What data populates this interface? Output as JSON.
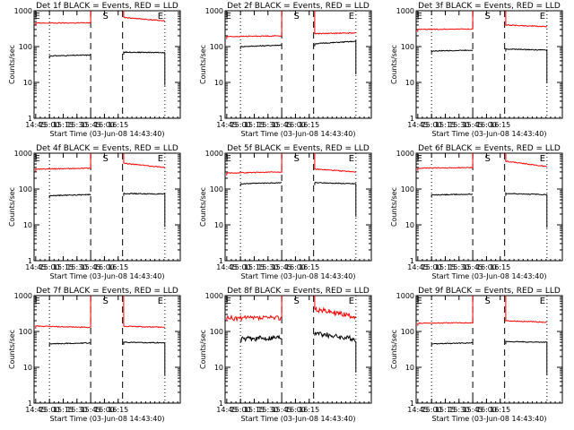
{
  "colors": {
    "events": "#000000",
    "lld": "#ff0000",
    "axes": "#000000"
  },
  "chart_data": [
    {
      "type": "line",
      "title": "Det 1f BLACK = Events, RED = LLD",
      "ylabel": "Counts/sec",
      "xlabel": "Start Time (03-Jun-08 14:43:40)",
      "yscale": "log",
      "ylim": [
        1,
        1000
      ],
      "xticks": [
        "14:45",
        "15:00",
        "15:15",
        "15:30",
        "15:45",
        "16:00",
        "16:15"
      ],
      "yticks": [
        "1",
        "10",
        "100",
        "1000"
      ],
      "markers": [
        "E",
        "S",
        "E"
      ],
      "series": [
        {
          "label": "Events",
          "segments": [
            {
              "x": [
                15.0,
                15.75
              ],
              "y": [
                55,
                58
              ]
            },
            {
              "x": [
                16.35,
                17.1
              ],
              "y": [
                70,
                68
              ]
            }
          ]
        },
        {
          "label": "LLD",
          "segments": [
            {
              "x": [
                14.75,
                15.75
              ],
              "y": [
                450,
                460
              ]
            },
            {
              "x": [
                16.35,
                17.1
              ],
              "y": [
                650,
                520
              ]
            }
          ]
        }
      ]
    },
    {
      "type": "line",
      "title": "Det 2f BLACK = Events, RED = LLD",
      "ylabel": "Counts/sec",
      "xlabel": "Start Time (03-Jun-08 14:43:40)",
      "yscale": "log",
      "ylim": [
        1,
        1000
      ],
      "xticks": [
        "14:45",
        "15:00",
        "15:15",
        "15:30",
        "15:45",
        "16:00",
        "16:15"
      ],
      "yticks": [
        "1",
        "10",
        "100",
        "1000"
      ],
      "markers": [
        "E",
        "S",
        "E"
      ],
      "series": [
        {
          "label": "Events",
          "segments": [
            {
              "x": [
                15.0,
                15.75
              ],
              "y": [
                100,
                110
              ]
            },
            {
              "x": [
                16.35,
                17.1
              ],
              "y": [
                120,
                140
              ]
            }
          ]
        },
        {
          "label": "LLD",
          "segments": [
            {
              "x": [
                14.75,
                15.75
              ],
              "y": [
                190,
                200
              ]
            },
            {
              "x": [
                16.35,
                17.1
              ],
              "y": [
                230,
                240
              ]
            }
          ]
        }
      ]
    },
    {
      "type": "line",
      "title": "Det 3f BLACK = Events, RED = LLD",
      "ylabel": "Counts/sec",
      "xlabel": "Start Time (03-Jun-08 14:43:40)",
      "yscale": "log",
      "ylim": [
        1,
        1000
      ],
      "xticks": [
        "14:45",
        "15:00",
        "15:15",
        "15:30",
        "15:45",
        "16:00",
        "16:15"
      ],
      "yticks": [
        "1",
        "10",
        "100",
        "1000"
      ],
      "markers": [
        "E",
        "S",
        "E"
      ],
      "series": [
        {
          "label": "Events",
          "segments": [
            {
              "x": [
                15.0,
                15.75
              ],
              "y": [
                75,
                80
              ]
            },
            {
              "x": [
                16.35,
                17.1
              ],
              "y": [
                85,
                80
              ]
            }
          ]
        },
        {
          "label": "LLD",
          "segments": [
            {
              "x": [
                14.75,
                15.75
              ],
              "y": [
                300,
                310
              ]
            },
            {
              "x": [
                16.35,
                17.1
              ],
              "y": [
                400,
                360
              ]
            }
          ]
        }
      ]
    },
    {
      "type": "line",
      "title": "Det 4f BLACK = Events, RED = LLD",
      "ylabel": "Counts/sec",
      "xlabel": "Start Time (03-Jun-08 14:43:40)",
      "yscale": "log",
      "ylim": [
        1,
        1000
      ],
      "xticks": [
        "14:45",
        "15:00",
        "15:15",
        "15:30",
        "15:45",
        "16:00",
        "16:15"
      ],
      "yticks": [
        "1",
        "10",
        "100",
        "1000"
      ],
      "markers": [
        "E",
        "S",
        "E"
      ],
      "series": [
        {
          "label": "Events",
          "segments": [
            {
              "x": [
                15.0,
                15.75
              ],
              "y": [
                65,
                70
              ]
            },
            {
              "x": [
                16.35,
                17.1
              ],
              "y": [
                75,
                72
              ]
            }
          ]
        },
        {
          "label": "LLD",
          "segments": [
            {
              "x": [
                14.75,
                15.75
              ],
              "y": [
                360,
                380
              ]
            },
            {
              "x": [
                16.35,
                17.1
              ],
              "y": [
                520,
                400
              ]
            }
          ]
        }
      ]
    },
    {
      "type": "line",
      "title": "Det 5f BLACK = Events, RED = LLD",
      "ylabel": "Counts/sec",
      "xlabel": "Start Time (03-Jun-08 14:43:40)",
      "yscale": "log",
      "ylim": [
        1,
        1000
      ],
      "xticks": [
        "14:45",
        "15:00",
        "15:15",
        "15:30",
        "15:45",
        "16:00",
        "16:15"
      ],
      "yticks": [
        "1",
        "10",
        "100",
        "1000"
      ],
      "markers": [
        "E",
        "S",
        "E"
      ],
      "series": [
        {
          "label": "Events",
          "segments": [
            {
              "x": [
                15.0,
                15.75
              ],
              "y": [
                140,
                150
              ]
            },
            {
              "x": [
                16.35,
                17.1
              ],
              "y": [
                150,
                140
              ]
            }
          ]
        },
        {
          "label": "LLD",
          "segments": [
            {
              "x": [
                14.75,
                15.75
              ],
              "y": [
                280,
                300
              ]
            },
            {
              "x": [
                16.35,
                17.1
              ],
              "y": [
                360,
                300
              ]
            }
          ]
        }
      ]
    },
    {
      "type": "line",
      "title": "Det 6f BLACK = Events, RED = LLD",
      "ylabel": "Counts/sec",
      "xlabel": "Start Time (03-Jun-08 14:43:40)",
      "yscale": "log",
      "ylim": [
        1,
        1000
      ],
      "xticks": [
        "14:45",
        "15:00",
        "15:15",
        "15:30",
        "15:45",
        "16:00",
        "16:15"
      ],
      "yticks": [
        "1",
        "10",
        "100",
        "1000"
      ],
      "markers": [
        "E",
        "S",
        "E"
      ],
      "series": [
        {
          "label": "Events",
          "segments": [
            {
              "x": [
                15.0,
                15.75
              ],
              "y": [
                68,
                72
              ]
            },
            {
              "x": [
                16.35,
                17.1
              ],
              "y": [
                75,
                70
              ]
            }
          ]
        },
        {
          "label": "LLD",
          "segments": [
            {
              "x": [
                14.75,
                15.75
              ],
              "y": [
                380,
                400
              ]
            },
            {
              "x": [
                16.35,
                17.1
              ],
              "y": [
                600,
                420
              ]
            }
          ]
        }
      ]
    },
    {
      "type": "line",
      "title": "Det 7f BLACK = Events, RED = LLD",
      "ylabel": "Counts/sec",
      "xlabel": "Start Time (03-Jun-08 14:43:40)",
      "yscale": "log",
      "ylim": [
        1,
        1000
      ],
      "xticks": [
        "14:45",
        "15:00",
        "15:15",
        "15:30",
        "15:45",
        "16:00",
        "16:15"
      ],
      "yticks": [
        "1",
        "10",
        "100",
        "1000"
      ],
      "markers": [
        "E",
        "S",
        "E"
      ],
      "series": [
        {
          "label": "Events",
          "segments": [
            {
              "x": [
                15.0,
                15.75
              ],
              "y": [
                45,
                48
              ]
            },
            {
              "x": [
                16.35,
                17.1
              ],
              "y": [
                50,
                48
              ]
            }
          ]
        },
        {
          "label": "LLD",
          "segments": [
            {
              "x": [
                14.75,
                15.75
              ],
              "y": [
                140,
                130
              ]
            },
            {
              "x": [
                16.35,
                17.1
              ],
              "y": [
                140,
                130
              ]
            }
          ]
        }
      ]
    },
    {
      "type": "line",
      "title": "Det 8f BLACK = Events, RED = LLD",
      "ylabel": "Counts/sec",
      "xlabel": "Start Time (03-Jun-08 14:43:40)",
      "yscale": "log",
      "ylim": [
        1,
        1000
      ],
      "xticks": [
        "14:45",
        "15:00",
        "15:15",
        "15:30",
        "15:45",
        "16:00",
        "16:15"
      ],
      "yticks": [
        "1",
        "10",
        "100",
        "1000"
      ],
      "markers": [
        "E",
        "S",
        "E"
      ],
      "series": [
        {
          "label": "Events",
          "segments": [
            {
              "x": [
                15.0,
                15.75
              ],
              "y": [
                60,
                70
              ]
            },
            {
              "x": [
                16.35,
                17.1
              ],
              "y": [
                90,
                60
              ]
            }
          ]
        },
        {
          "label": "LLD",
          "segments": [
            {
              "x": [
                14.75,
                15.75
              ],
              "y": [
                230,
                240
              ]
            },
            {
              "x": [
                16.35,
                17.1
              ],
              "y": [
                420,
                260
              ]
            }
          ]
        }
      ]
    },
    {
      "type": "line",
      "title": "Det 9f BLACK = Events, RED = LLD",
      "ylabel": "Counts/sec",
      "xlabel": "Start Time (03-Jun-08 14:43:40)",
      "yscale": "log",
      "ylim": [
        1,
        1000
      ],
      "xticks": [
        "14:45",
        "15:00",
        "15:15",
        "15:30",
        "15:45",
        "16:00",
        "16:15"
      ],
      "yticks": [
        "1",
        "10",
        "100",
        "1000"
      ],
      "markers": [
        "E",
        "S",
        "E"
      ],
      "series": [
        {
          "label": "Events",
          "segments": [
            {
              "x": [
                15.0,
                15.75
              ],
              "y": [
                45,
                48
              ]
            },
            {
              "x": [
                16.35,
                17.1
              ],
              "y": [
                52,
                50
              ]
            }
          ]
        },
        {
          "label": "LLD",
          "segments": [
            {
              "x": [
                14.75,
                15.75
              ],
              "y": [
                170,
                175
              ]
            },
            {
              "x": [
                16.35,
                17.1
              ],
              "y": [
                200,
                180
              ]
            }
          ]
        }
      ]
    }
  ]
}
